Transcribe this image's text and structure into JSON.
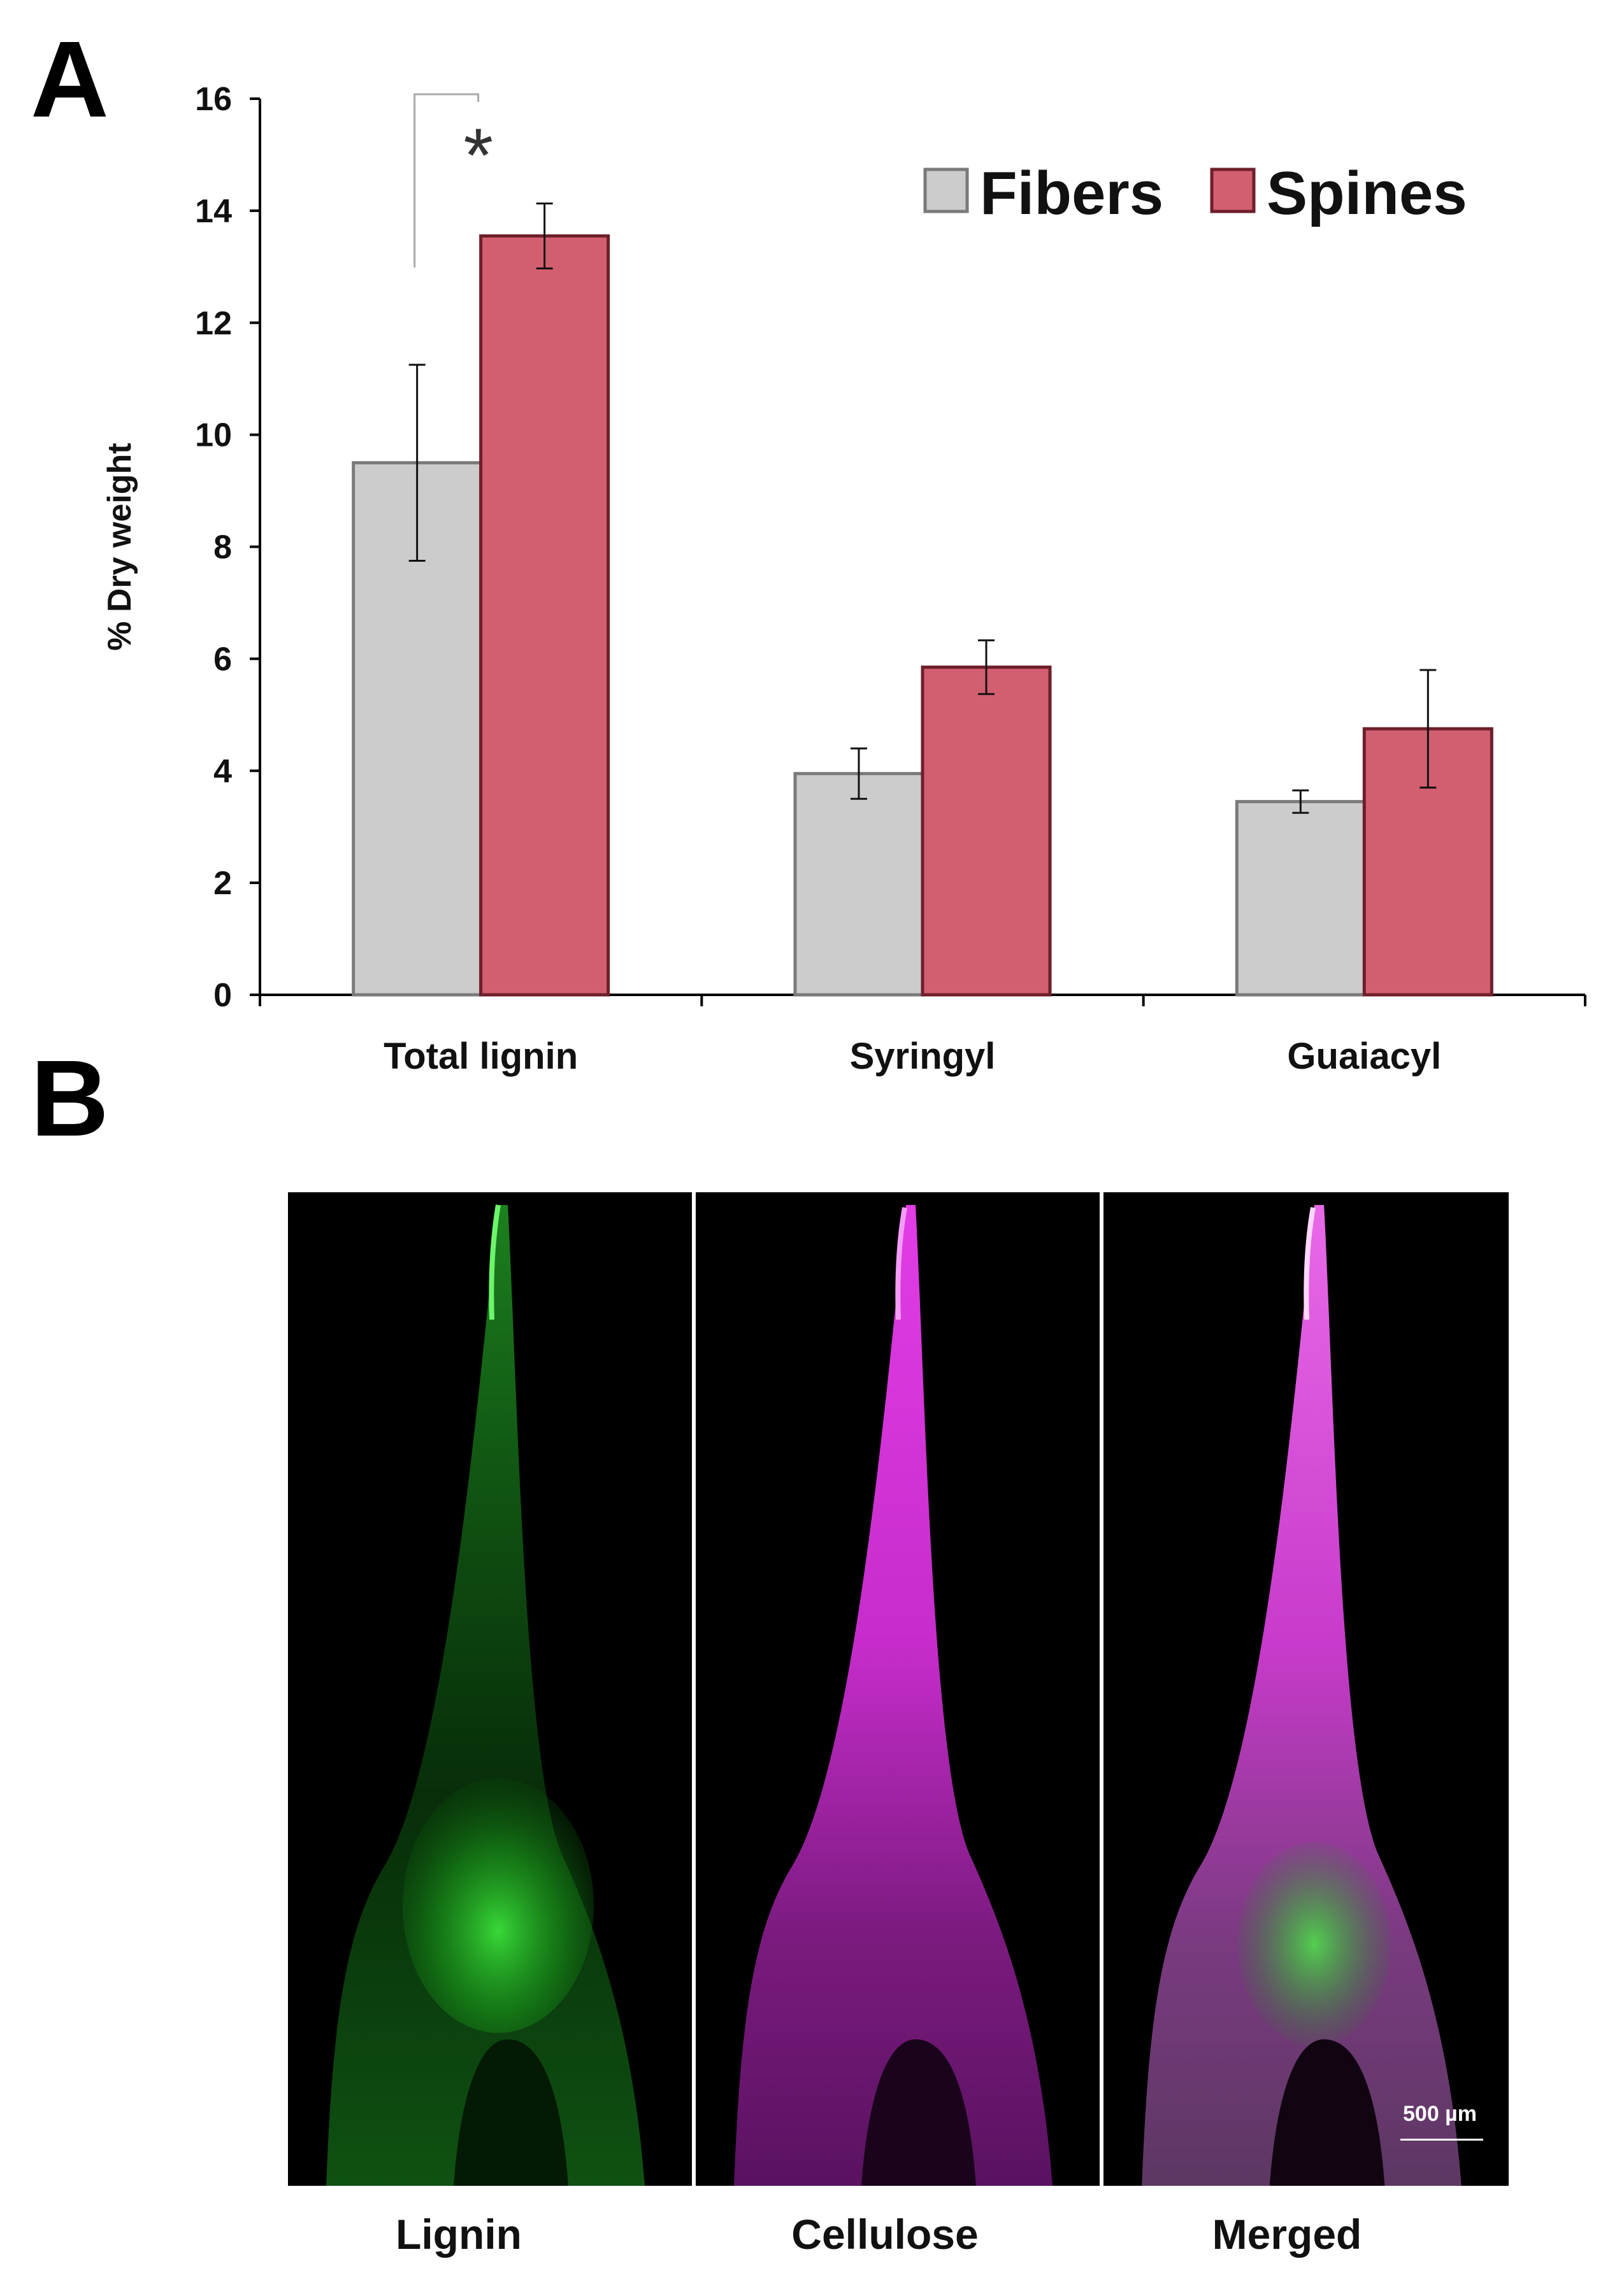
{
  "panels": {
    "a_label": "A",
    "b_label": "B"
  },
  "chart_data": {
    "type": "bar",
    "title": "",
    "xlabel": "",
    "ylabel": "% Dry weight",
    "ylim": [
      0,
      16
    ],
    "yticks": [
      "0",
      "2",
      "4",
      "6",
      "8",
      "10",
      "12",
      "14",
      "16"
    ],
    "categories": [
      "Total lignin",
      "Syringyl",
      "Guaiacyl"
    ],
    "series": [
      {
        "name": "Fibers",
        "color": "#cccccc",
        "edge": "#7a7a7a",
        "values": [
          9.5,
          3.95,
          3.45
        ],
        "errors": [
          1.75,
          0.45,
          0.2
        ]
      },
      {
        "name": "Spines",
        "color": "#d25f70",
        "edge": "#6e1f2a",
        "values": [
          13.55,
          5.85,
          4.75
        ],
        "errors": [
          0.58,
          0.48,
          1.05
        ]
      }
    ],
    "legend_position": "top-right",
    "grid": false,
    "annotations": [
      {
        "text": "*",
        "category": "Total lignin",
        "type": "significance-bracket"
      }
    ]
  },
  "micrographs": {
    "labels": [
      "Lignin",
      "Cellulose",
      "Merged"
    ],
    "stain_colors": {
      "lignin": "#22c21e",
      "cellulose": "#d21ed6"
    },
    "scale_bar_label": "500 µm"
  }
}
